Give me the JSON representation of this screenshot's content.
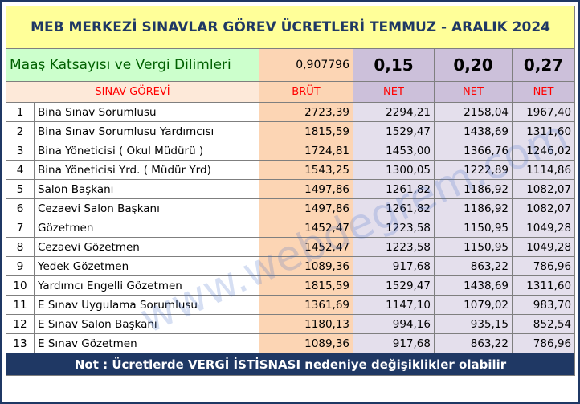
{
  "header": {
    "title": "MEB MERKEZİ SINAVLAR GÖREV ÜCRETLERİ TEMMUZ - ARALIK 2024"
  },
  "params": {
    "label": "Maaş Katsayısı ve Vergi Dilimleri",
    "coefficient": "0,907796",
    "rates": [
      "0,15",
      "0,20",
      "0,27"
    ]
  },
  "table": {
    "columns": [
      "SINAV GÖREVİ",
      "BRÜT",
      "NET",
      "NET",
      "NET"
    ],
    "rows": [
      [
        "1",
        "Bina Sınav Sorumlusu",
        "2723,39",
        "2294,21",
        "2158,04",
        "1967,40"
      ],
      [
        "2",
        "Bina Sınav Sorumlusu Yardımcısı",
        "1815,59",
        "1529,47",
        "1438,69",
        "1311,60"
      ],
      [
        "3",
        "Bina Yöneticisi ( Okul Müdürü )",
        "1724,81",
        "1453,00",
        "1366,76",
        "1246,02"
      ],
      [
        "4",
        "Bina Yöneticisi Yrd. ( Müdür Yrd)",
        "1543,25",
        "1300,05",
        "1222,89",
        "1114,86"
      ],
      [
        "5",
        "Salon Başkanı",
        "1497,86",
        "1261,82",
        "1186,92",
        "1082,07"
      ],
      [
        "6",
        "Cezaevi Salon Başkanı",
        "1497,86",
        "1261,82",
        "1186,92",
        "1082,07"
      ],
      [
        "7",
        "Gözetmen",
        "1452,47",
        "1223,58",
        "1150,95",
        "1049,28"
      ],
      [
        "8",
        "Cezaevi Gözetmen",
        "1452,47",
        "1223,58",
        "1150,95",
        "1049,28"
      ],
      [
        "9",
        "Yedek Gözetmen",
        "1089,36",
        "917,68",
        "863,22",
        "786,96"
      ],
      [
        "10",
        "Yardımcı Engelli Gözetmen",
        "1815,59",
        "1529,47",
        "1438,69",
        "1311,60"
      ],
      [
        "11",
        "E Sınav Uygulama Sorumlusu",
        "1361,69",
        "1147,10",
        "1079,02",
        "983,70"
      ],
      [
        "12",
        "E Sınav Salon Başkanı",
        "1180,13",
        "994,16",
        "935,15",
        "852,54"
      ],
      [
        "13",
        "E Sınav Gözetmen",
        "1089,36",
        "917,68",
        "863,22",
        "786,96"
      ]
    ]
  },
  "watermark": "www.webdegrem.com",
  "footer": {
    "note": "Not : Ücretlerde VERGİ İSTİSNASI nedeniye değişiklikler olabilir"
  }
}
